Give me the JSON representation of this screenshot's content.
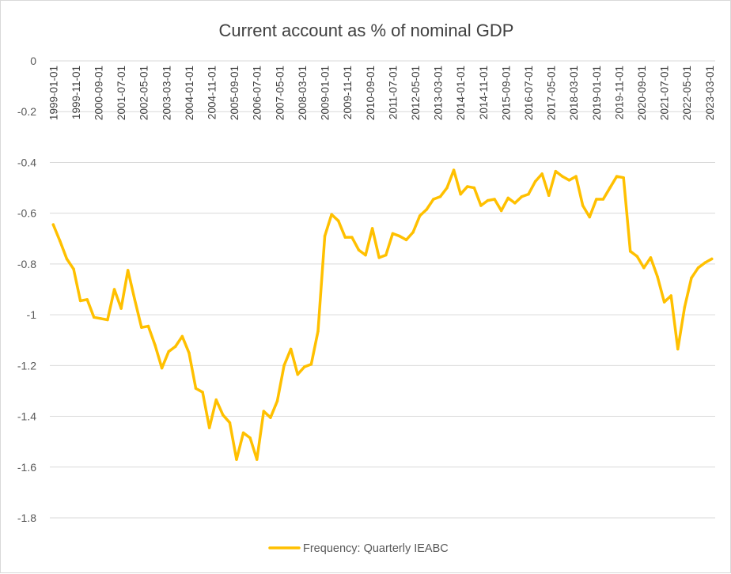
{
  "chart_data": {
    "type": "line",
    "title": "Current account as % of nominal GDP",
    "xlabel": "",
    "ylabel": "",
    "ylim": [
      -1.8,
      0
    ],
    "yticks": [
      0,
      -0.2,
      -0.4,
      -0.6,
      -0.8,
      -1,
      -1.2,
      -1.4,
      -1.6,
      -1.8
    ],
    "ytick_labels": [
      "0",
      "-0.2",
      "-0.4",
      "-0.6",
      "-0.8",
      "-1",
      "-1.2",
      "-1.4",
      "-1.6",
      "-1.8"
    ],
    "x_axis_position": "top",
    "x_tick_labels": [
      "1999-01-01",
      "1999-11-01",
      "2000-09-01",
      "2001-07-01",
      "2002-05-01",
      "2003-03-01",
      "2004-01-01",
      "2004-11-01",
      "2005-09-01",
      "2006-07-01",
      "2007-05-01",
      "2008-03-01",
      "2009-01-01",
      "2009-11-01",
      "2010-09-01",
      "2011-07-01",
      "2012-05-01",
      "2013-03-01",
      "2014-01-01",
      "2014-11-01",
      "2015-09-01",
      "2016-07-01",
      "2017-05-01",
      "2018-03-01",
      "2019-01-01",
      "2019-11-01",
      "2020-09-01",
      "2021-07-01",
      "2022-05-01",
      "2023-03-01"
    ],
    "grid": true,
    "legend_position": "bottom-center",
    "series": [
      {
        "name": "Frequency: Quarterly IEABC",
        "color": "#FFC000",
        "values": [
          -0.645,
          -0.71,
          -0.78,
          -0.82,
          -0.945,
          -0.94,
          -1.01,
          -1.015,
          -1.02,
          -0.9,
          -0.975,
          -0.825,
          -0.94,
          -1.05,
          -1.045,
          -1.12,
          -1.21,
          -1.145,
          -1.125,
          -1.085,
          -1.15,
          -1.29,
          -1.305,
          -1.445,
          -1.335,
          -1.395,
          -1.425,
          -1.57,
          -1.465,
          -1.485,
          -1.57,
          -1.38,
          -1.405,
          -1.34,
          -1.2,
          -1.135,
          -1.235,
          -1.205,
          -1.195,
          -1.065,
          -0.69,
          -0.605,
          -0.63,
          -0.695,
          -0.695,
          -0.745,
          -0.765,
          -0.66,
          -0.775,
          -0.765,
          -0.68,
          -0.69,
          -0.705,
          -0.675,
          -0.61,
          -0.585,
          -0.545,
          -0.535,
          -0.5,
          -0.43,
          -0.525,
          -0.495,
          -0.5,
          -0.57,
          -0.55,
          -0.545,
          -0.59,
          -0.54,
          -0.56,
          -0.535,
          -0.525,
          -0.475,
          -0.445,
          -0.53,
          -0.435,
          -0.455,
          -0.47,
          -0.455,
          -0.57,
          -0.615,
          -0.545,
          -0.545,
          -0.5,
          -0.455,
          -0.46,
          -0.75,
          -0.77,
          -0.815,
          -0.775,
          -0.85,
          -0.95,
          -0.925,
          -1.135,
          -0.97,
          -0.855,
          -0.815,
          -0.795,
          -0.78
        ]
      }
    ]
  }
}
